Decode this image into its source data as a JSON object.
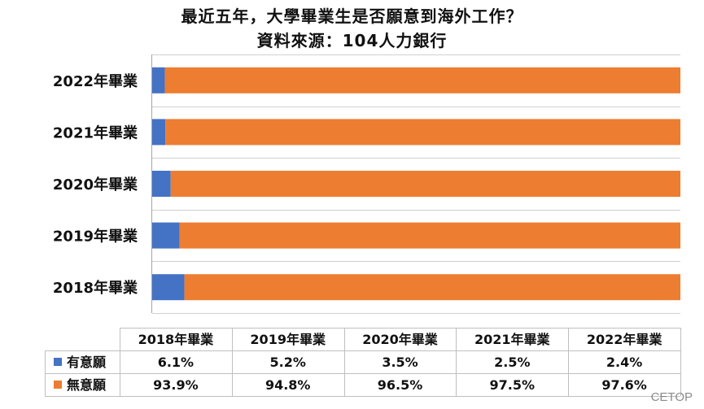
{
  "title_line1": "最近五年，大學畢業生是否願意到海外工作？",
  "title_line2": "資料來源：104人力銀行",
  "watermark": "CETOP",
  "colors": {
    "yes": "#4472C4",
    "no": "#ED7D31",
    "grid": "#d0d0d0",
    "table_border": "#bfbfbf"
  },
  "chart_data": {
    "type": "bar",
    "orientation": "horizontal",
    "stacked": true,
    "percent_stacked": true,
    "categories": [
      "2022年畢業",
      "2021年畢業",
      "2020年畢業",
      "2019年畢業",
      "2018年畢業"
    ],
    "series": [
      {
        "name": "有意願",
        "values": [
          2.4,
          2.5,
          3.5,
          5.2,
          6.1
        ]
      },
      {
        "name": "無意願",
        "values": [
          97.6,
          97.5,
          96.5,
          94.8,
          93.9
        ]
      }
    ],
    "xlim": [
      0,
      100
    ],
    "grid": true,
    "legend": "table-bottom"
  },
  "data_table": {
    "columns": [
      "2018年畢業",
      "2019年畢業",
      "2020年畢業",
      "2021年畢業",
      "2022年畢業"
    ],
    "rows": [
      {
        "label": "有意願",
        "values": [
          "6.1%",
          "5.2%",
          "3.5%",
          "2.5%",
          "2.4%"
        ]
      },
      {
        "label": "無意願",
        "values": [
          "93.9%",
          "94.8%",
          "96.5%",
          "97.5%",
          "97.6%"
        ]
      }
    ]
  }
}
